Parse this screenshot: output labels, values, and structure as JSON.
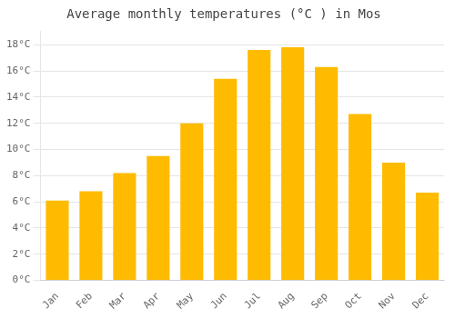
{
  "chart_data": {
    "type": "bar",
    "title": "Average monthly temperatures (°C ) in Mos",
    "categories": [
      "Jan",
      "Feb",
      "Mar",
      "Apr",
      "May",
      "Jun",
      "Jul",
      "Aug",
      "Sep",
      "Oct",
      "Nov",
      "Dec"
    ],
    "values": [
      6.1,
      6.8,
      8.2,
      9.5,
      12.0,
      15.4,
      17.6,
      17.8,
      16.3,
      12.7,
      9.0,
      6.7
    ],
    "color": "#FFBB00",
    "ylim": [
      0,
      19
    ],
    "yticks": [
      {
        "value": 0,
        "label": "0°C"
      },
      {
        "value": 2,
        "label": "2°C"
      },
      {
        "value": 4,
        "label": "4°C"
      },
      {
        "value": 6,
        "label": "6°C"
      },
      {
        "value": 8,
        "label": "8°C"
      },
      {
        "value": 10,
        "label": "10°C"
      },
      {
        "value": 12,
        "label": "12°C"
      },
      {
        "value": 14,
        "label": "14°C"
      },
      {
        "value": 16,
        "label": "16°C"
      },
      {
        "value": 18,
        "label": "18°C"
      }
    ],
    "grid": true
  }
}
